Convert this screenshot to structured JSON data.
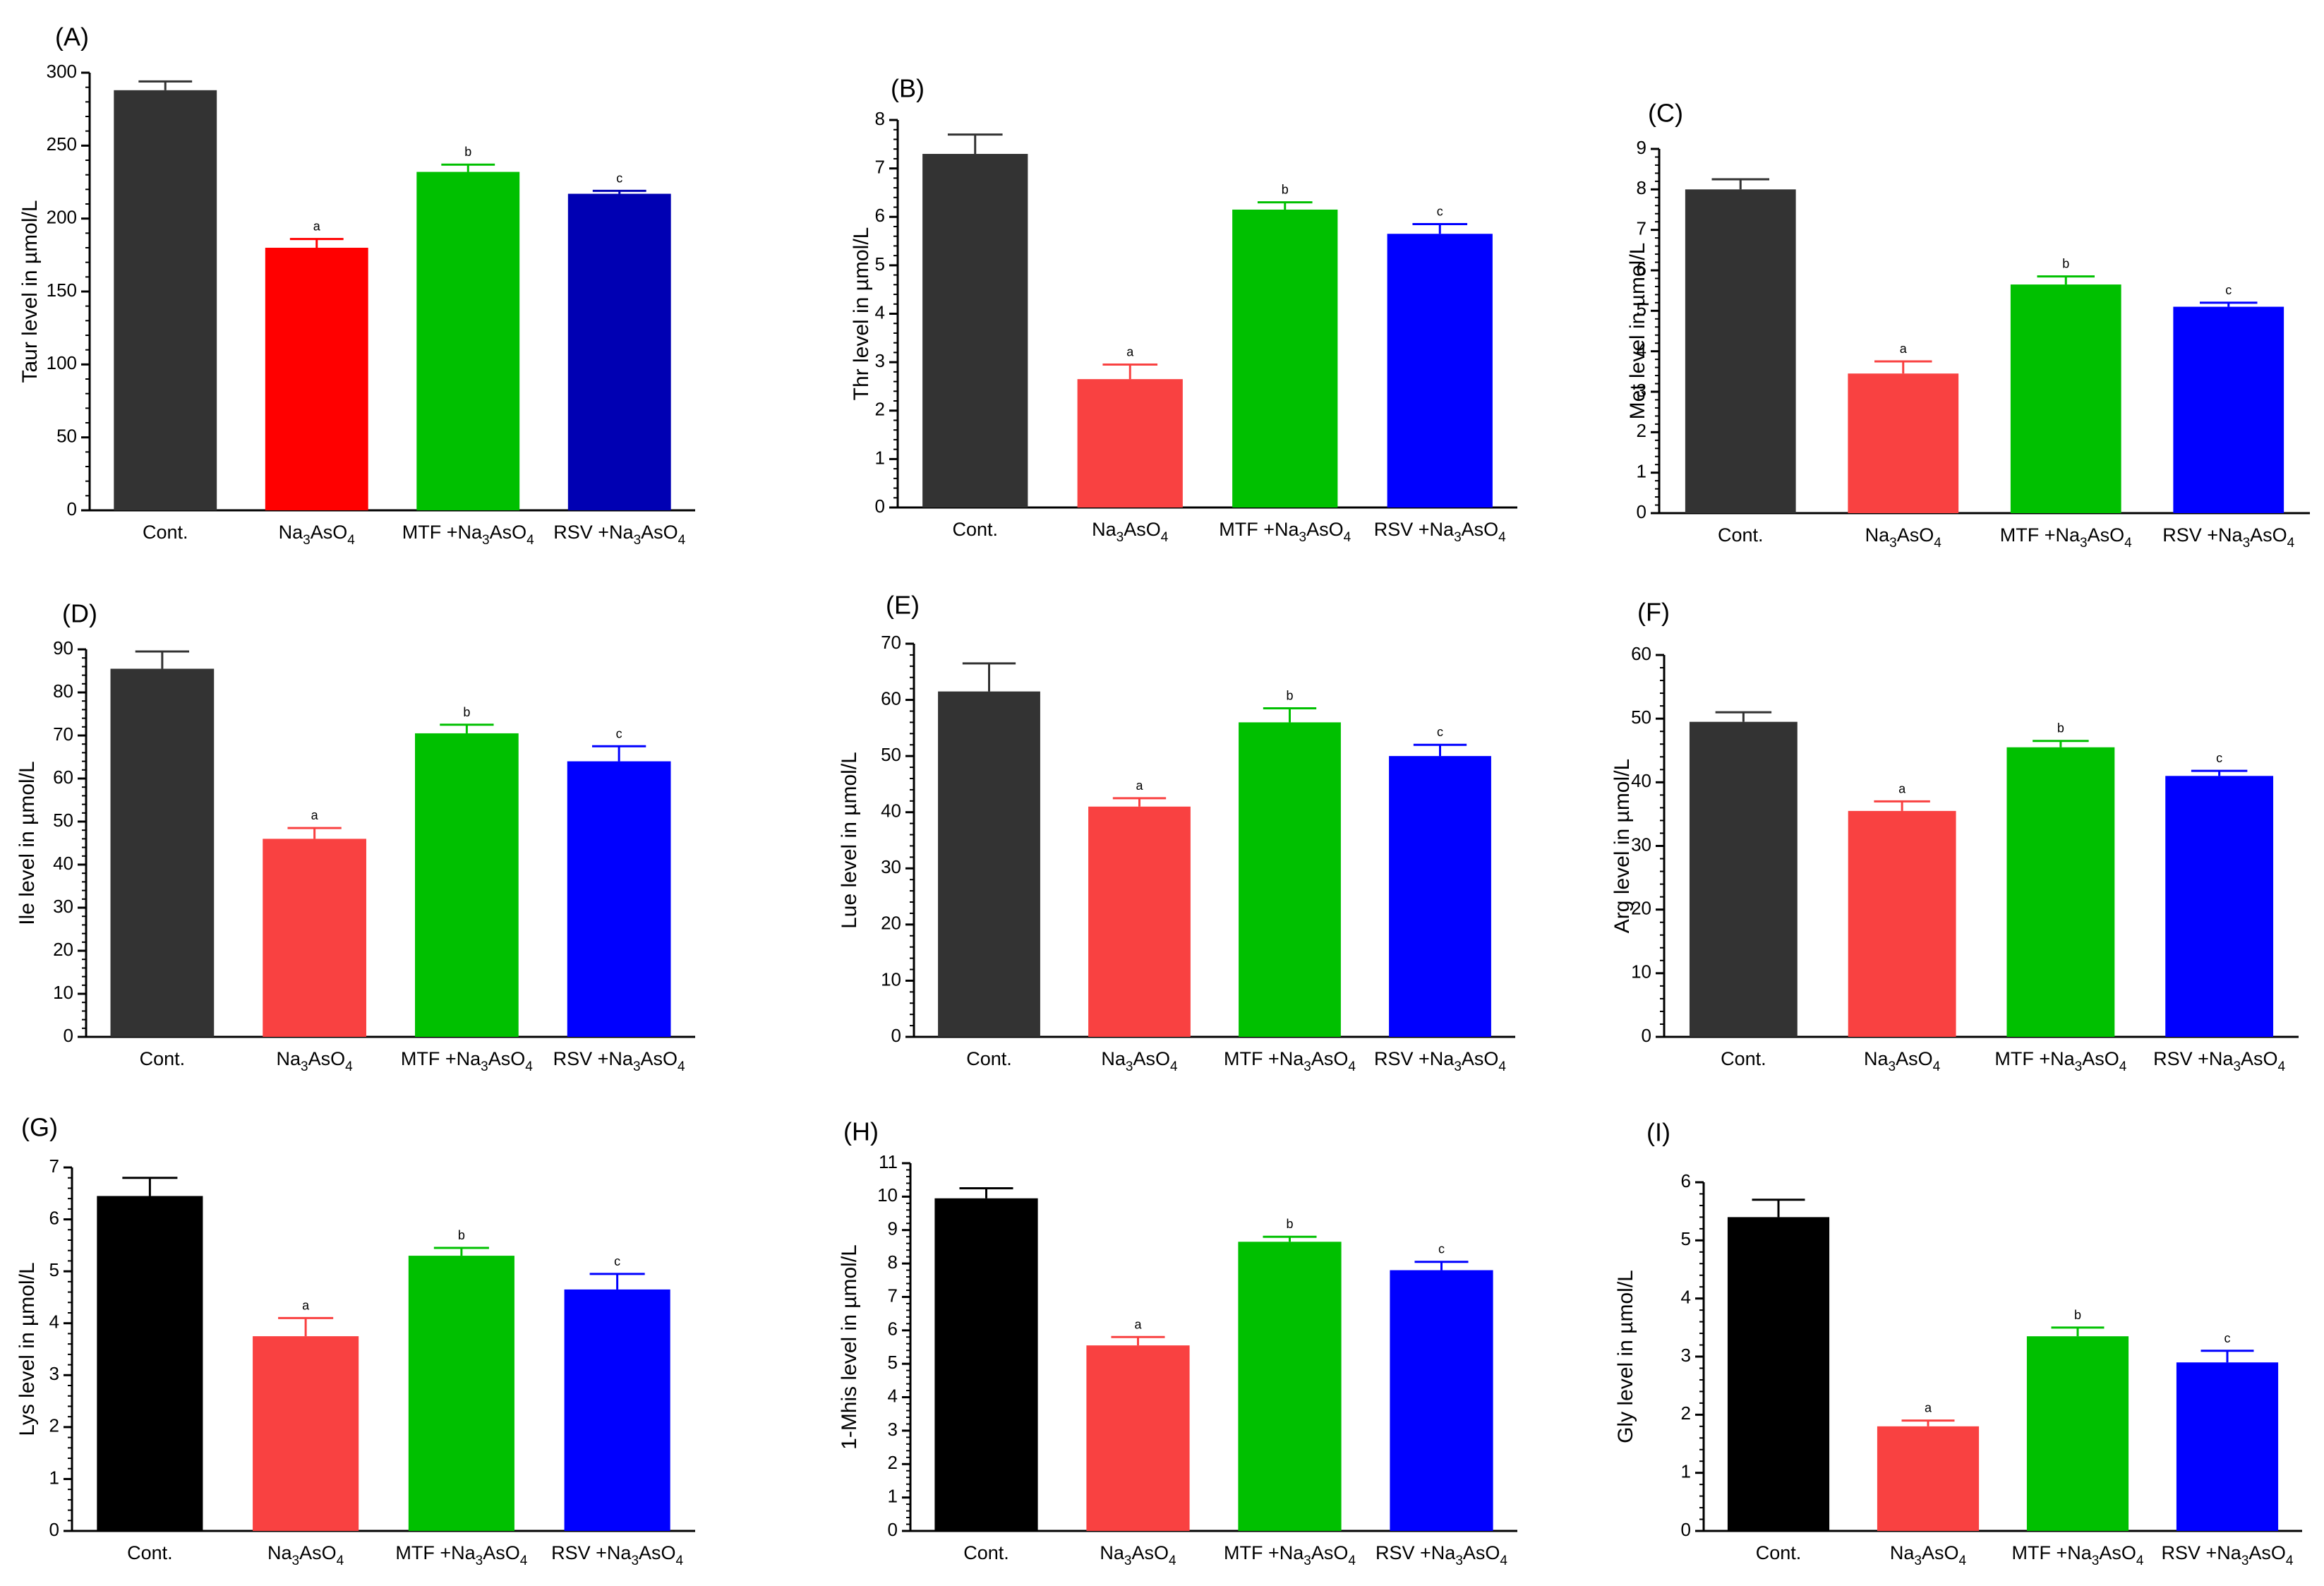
{
  "colors": {
    "dark": "#333333",
    "black": "#000000",
    "red_dark": "#ff0000",
    "red": "#f94141",
    "green": "#00c000",
    "navy": "#0000b3",
    "blue": "#0000ff"
  },
  "chart_data": [
    {
      "type": "bar",
      "panel_label": "(A)",
      "ylabel": "Taur level in µmol/L",
      "ylim": [
        0,
        300
      ],
      "yticks": [
        "0",
        "50",
        "100",
        "150",
        "200",
        "250",
        "300"
      ],
      "categories": [
        {
          "pre": "Cont.",
          "sub1": "",
          "mid": "",
          "sub2": "",
          "post": ""
        },
        {
          "pre": "Na",
          "sub1": "3",
          "mid": "AsO",
          "sub2": "4",
          "post": ""
        },
        {
          "pre": "MTF +Na",
          "sub1": "3",
          "mid": "AsO",
          "sub2": "4",
          "post": ""
        },
        {
          "pre": "RSV +Na",
          "sub1": "3",
          "mid": "AsO",
          "sub2": "4",
          "post": ""
        }
      ],
      "values": [
        288,
        180,
        232,
        217
      ],
      "errors": [
        6,
        6,
        5,
        2
      ],
      "letters": [
        "",
        "a",
        "b",
        "c"
      ],
      "bar_colors": [
        "dark",
        "red_dark",
        "green",
        "navy"
      ]
    },
    {
      "type": "bar",
      "panel_label": "(B)",
      "ylabel": "Thr level in µmol/L",
      "ylim": [
        0,
        8
      ],
      "yticks": [
        "0",
        "1",
        "2",
        "3",
        "4",
        "5",
        "6",
        "7",
        "8"
      ],
      "categories": [
        {
          "pre": "Cont.",
          "sub1": "",
          "mid": "",
          "sub2": "",
          "post": ""
        },
        {
          "pre": "Na",
          "sub1": "3",
          "mid": "AsO",
          "sub2": "4",
          "post": ""
        },
        {
          "pre": "MTF +Na",
          "sub1": "3",
          "mid": "AsO",
          "sub2": "4",
          "post": ""
        },
        {
          "pre": "RSV +Na",
          "sub1": "3",
          "mid": "AsO",
          "sub2": "4",
          "post": ""
        }
      ],
      "values": [
        7.3,
        2.65,
        6.15,
        5.65
      ],
      "errors": [
        0.4,
        0.3,
        0.15,
        0.2
      ],
      "letters": [
        "",
        "a",
        "b",
        "c"
      ],
      "bar_colors": [
        "dark",
        "red",
        "green",
        "blue"
      ]
    },
    {
      "type": "bar",
      "panel_label": "(C)",
      "ylabel": "Met level in µmol/L",
      "ylim": [
        0,
        9
      ],
      "yticks": [
        "0",
        "1",
        "2",
        "3",
        "4",
        "5",
        "6",
        "7",
        "8",
        "9"
      ],
      "categories": [
        {
          "pre": "Cont.",
          "sub1": "",
          "mid": "",
          "sub2": "",
          "post": ""
        },
        {
          "pre": "Na",
          "sub1": "3",
          "mid": "AsO",
          "sub2": "4",
          "post": ""
        },
        {
          "pre": "MTF +Na",
          "sub1": "3",
          "mid": "AsO",
          "sub2": "4",
          "post": ""
        },
        {
          "pre": "RSV +Na",
          "sub1": "3",
          "mid": "AsO",
          "sub2": "4",
          "post": ""
        }
      ],
      "values": [
        8.0,
        3.45,
        5.65,
        5.1
      ],
      "errors": [
        0.25,
        0.3,
        0.2,
        0.1
      ],
      "letters": [
        "",
        "a",
        "b",
        "c"
      ],
      "bar_colors": [
        "dark",
        "red",
        "green",
        "blue"
      ]
    },
    {
      "type": "bar",
      "panel_label": "(D)",
      "ylabel": "Ile level in µmol/L",
      "ylim": [
        0,
        90
      ],
      "yticks": [
        "0",
        "10",
        "20",
        "30",
        "40",
        "50",
        "60",
        "70",
        "80",
        "90"
      ],
      "categories": [
        {
          "pre": "Cont.",
          "sub1": "",
          "mid": "",
          "sub2": "",
          "post": ""
        },
        {
          "pre": "Na",
          "sub1": "3",
          "mid": "AsO",
          "sub2": "4",
          "post": ""
        },
        {
          "pre": "MTF +Na",
          "sub1": "3",
          "mid": "AsO",
          "sub2": "4",
          "post": ""
        },
        {
          "pre": "RSV +Na",
          "sub1": "3",
          "mid": "AsO",
          "sub2": "4",
          "post": ""
        }
      ],
      "values": [
        85.5,
        46,
        70.5,
        64
      ],
      "errors": [
        4,
        2.5,
        2,
        3.5
      ],
      "letters": [
        "",
        "a",
        "b",
        "c"
      ],
      "bar_colors": [
        "dark",
        "red",
        "green",
        "blue"
      ]
    },
    {
      "type": "bar",
      "panel_label": "(E)",
      "ylabel": "Lue level in µmol/L",
      "ylim": [
        0,
        70
      ],
      "yticks": [
        "0",
        "10",
        "20",
        "30",
        "40",
        "50",
        "60",
        "70"
      ],
      "categories": [
        {
          "pre": "Cont.",
          "sub1": "",
          "mid": "",
          "sub2": "",
          "post": ""
        },
        {
          "pre": "Na",
          "sub1": "3",
          "mid": "AsO",
          "sub2": "4",
          "post": ""
        },
        {
          "pre": "MTF +Na",
          "sub1": "3",
          "mid": "AsO",
          "sub2": "4",
          "post": ""
        },
        {
          "pre": "RSV +Na",
          "sub1": "3",
          "mid": "AsO",
          "sub2": "4",
          "post": ""
        }
      ],
      "values": [
        61.5,
        41,
        56,
        50
      ],
      "errors": [
        5,
        1.5,
        2.5,
        2
      ],
      "letters": [
        "",
        "a",
        "b",
        "c"
      ],
      "bar_colors": [
        "dark",
        "red",
        "green",
        "blue"
      ]
    },
    {
      "type": "bar",
      "panel_label": "(F)",
      "ylabel": "Arg level in µmol/L",
      "ylim": [
        0,
        60
      ],
      "yticks": [
        "0",
        "10",
        "20",
        "30",
        "40",
        "50",
        "60"
      ],
      "categories": [
        {
          "pre": "Cont.",
          "sub1": "",
          "mid": "",
          "sub2": "",
          "post": ""
        },
        {
          "pre": "Na",
          "sub1": "3",
          "mid": "AsO",
          "sub2": "4",
          "post": ""
        },
        {
          "pre": "MTF +Na",
          "sub1": "3",
          "mid": "AsO",
          "sub2": "4",
          "post": ""
        },
        {
          "pre": "RSV +Na",
          "sub1": "3",
          "mid": "AsO",
          "sub2": "4",
          "post": ""
        }
      ],
      "values": [
        49.5,
        35.5,
        45.5,
        41
      ],
      "errors": [
        1.5,
        1.5,
        1,
        0.8
      ],
      "letters": [
        "",
        "a",
        "b",
        "c"
      ],
      "bar_colors": [
        "dark",
        "red",
        "green",
        "blue"
      ]
    },
    {
      "type": "bar",
      "panel_label": "(G)",
      "ylabel": "Lys level in µmol/L",
      "ylim": [
        0,
        7
      ],
      "yticks": [
        "0",
        "1",
        "2",
        "3",
        "4",
        "5",
        "6",
        "7"
      ],
      "categories": [
        {
          "pre": "Cont.",
          "sub1": "",
          "mid": "",
          "sub2": "",
          "post": ""
        },
        {
          "pre": "Na",
          "sub1": "3",
          "mid": "AsO",
          "sub2": "4",
          "post": ""
        },
        {
          "pre": "MTF +Na",
          "sub1": "3",
          "mid": "AsO",
          "sub2": "4",
          "post": ""
        },
        {
          "pre": "RSV +Na",
          "sub1": "3",
          "mid": "AsO",
          "sub2": "4",
          "post": ""
        }
      ],
      "values": [
        6.45,
        3.75,
        5.3,
        4.65
      ],
      "errors": [
        0.35,
        0.35,
        0.15,
        0.3
      ],
      "letters": [
        "",
        "a",
        "b",
        "c"
      ],
      "bar_colors": [
        "black",
        "red",
        "green",
        "blue"
      ]
    },
    {
      "type": "bar",
      "panel_label": "(H)",
      "ylabel": "1-Mhis level in µmol/L",
      "ylim": [
        0,
        11
      ],
      "yticks": [
        "0",
        "1",
        "2",
        "3",
        "4",
        "5",
        "6",
        "7",
        "8",
        "9",
        "10",
        "11"
      ],
      "categories": [
        {
          "pre": "Cont.",
          "sub1": "",
          "mid": "",
          "sub2": "",
          "post": ""
        },
        {
          "pre": "Na",
          "sub1": "3",
          "mid": "AsO",
          "sub2": "4",
          "post": ""
        },
        {
          "pre": "MTF +Na",
          "sub1": "3",
          "mid": "AsO",
          "sub2": "4",
          "post": ""
        },
        {
          "pre": "RSV +Na",
          "sub1": "3",
          "mid": "AsO",
          "sub2": "4",
          "post": ""
        }
      ],
      "values": [
        9.95,
        5.55,
        8.65,
        7.8
      ],
      "errors": [
        0.3,
        0.25,
        0.15,
        0.25
      ],
      "letters": [
        "",
        "a",
        "b",
        "c"
      ],
      "bar_colors": [
        "black",
        "red",
        "green",
        "blue"
      ]
    },
    {
      "type": "bar",
      "panel_label": "(I)",
      "ylabel": "Gly level in µmol/L",
      "ylim": [
        0,
        6
      ],
      "yticks": [
        "0",
        "1",
        "2",
        "3",
        "4",
        "5",
        "6"
      ],
      "categories": [
        {
          "pre": "Cont.",
          "sub1": "",
          "mid": "",
          "sub2": "",
          "post": ""
        },
        {
          "pre": "Na",
          "sub1": "3",
          "mid": "AsO",
          "sub2": "4",
          "post": ""
        },
        {
          "pre": "MTF +Na",
          "sub1": "3",
          "mid": "AsO",
          "sub2": "4",
          "post": ""
        },
        {
          "pre": "RSV +Na",
          "sub1": "3",
          "mid": "AsO",
          "sub2": "4",
          "post": ""
        }
      ],
      "values": [
        5.4,
        1.8,
        3.35,
        2.9
      ],
      "errors": [
        0.3,
        0.1,
        0.15,
        0.2
      ],
      "letters": [
        "",
        "a",
        "b",
        "c"
      ],
      "bar_colors": [
        "black",
        "red",
        "green",
        "blue"
      ]
    }
  ]
}
